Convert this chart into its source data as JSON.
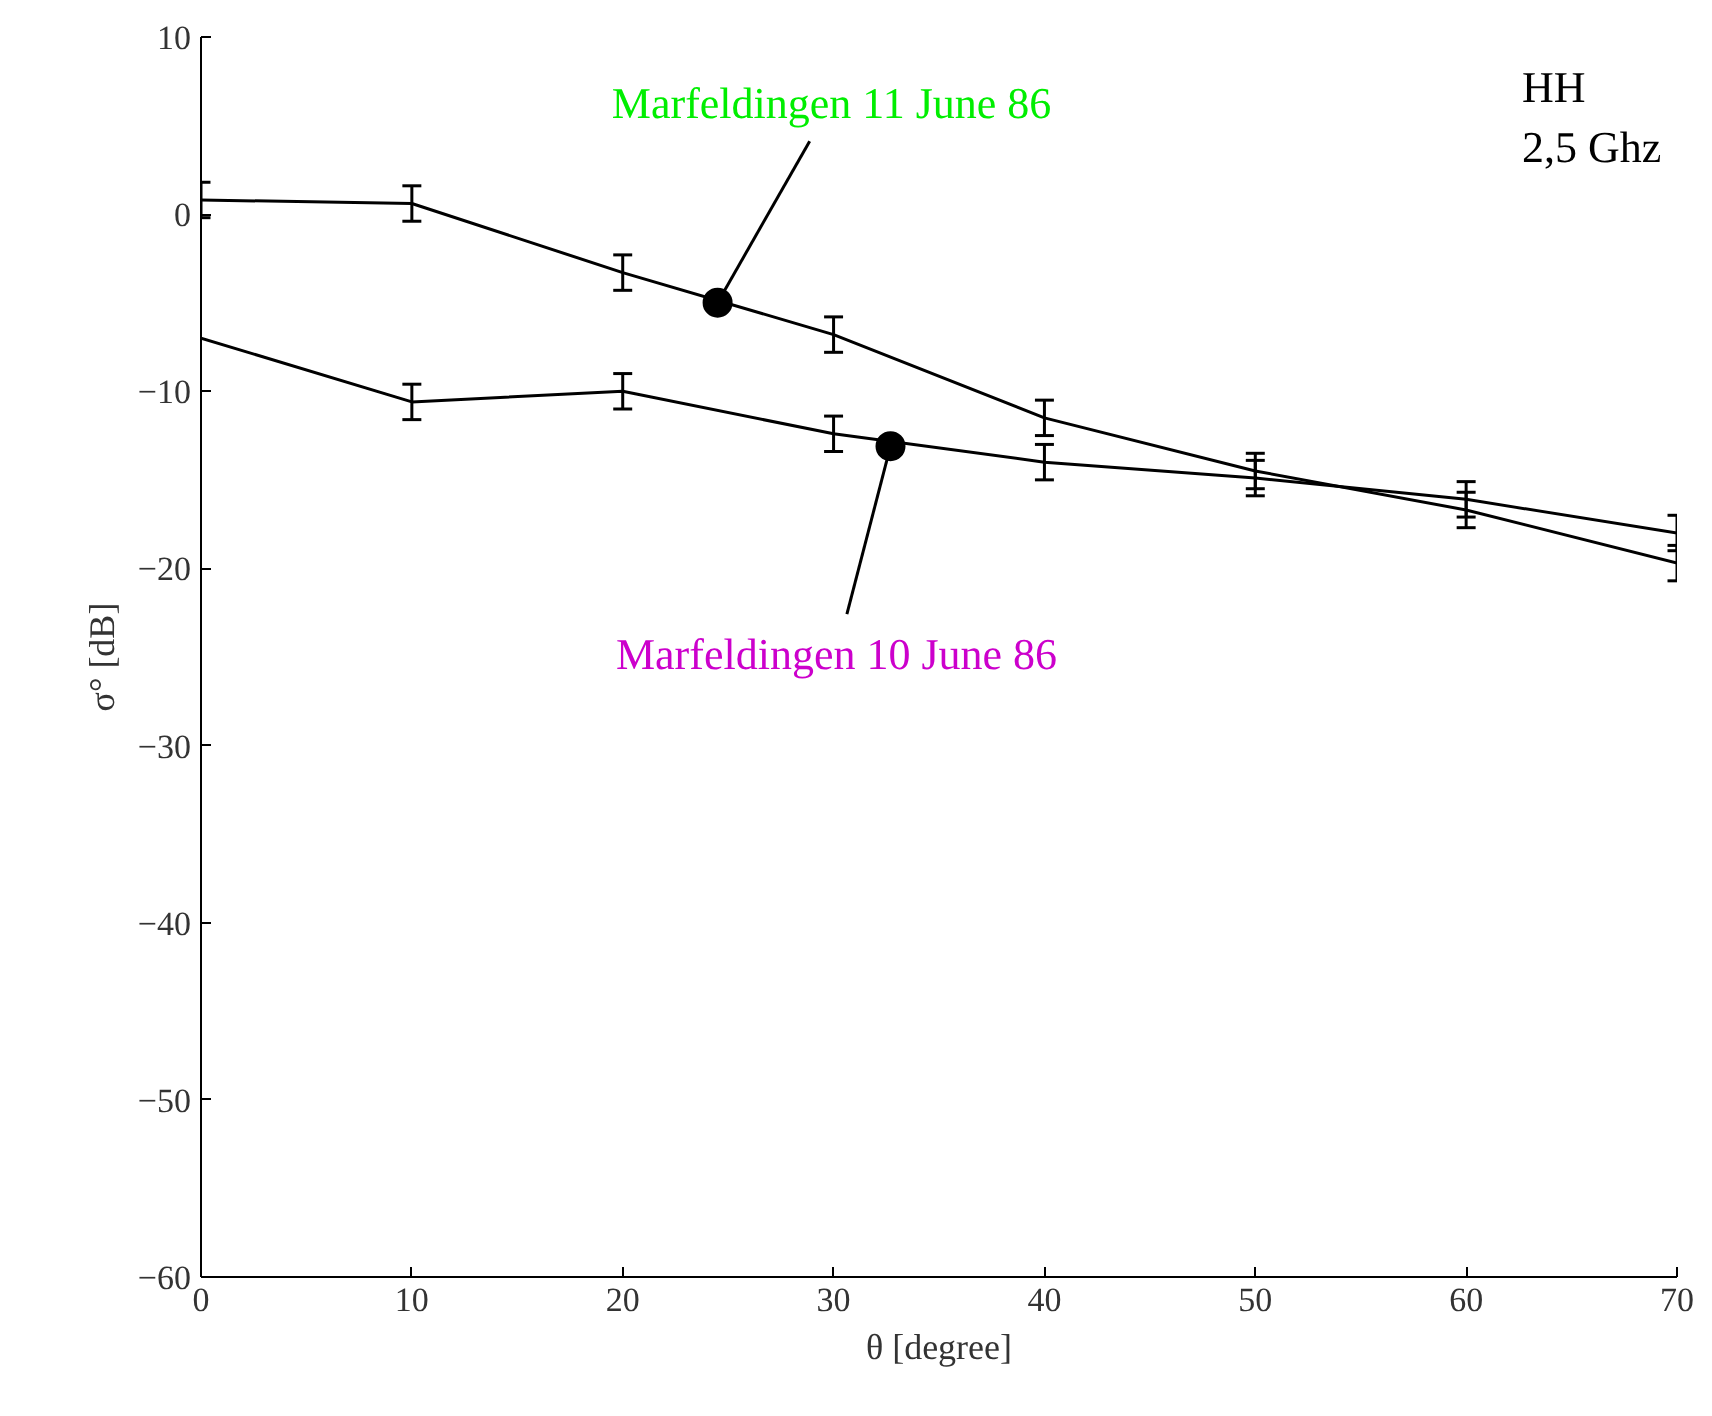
{
  "chart_data": {
    "type": "line",
    "xlabel": "θ [degree]",
    "ylabel": "σ° [dB]",
    "x": [
      0,
      10,
      20,
      30,
      40,
      50,
      60,
      70
    ],
    "series": [
      {
        "color": "#000000",
        "values": [
          0.8,
          0.6,
          -3.3,
          -6.8,
          -11.5,
          -14.5,
          -16.7,
          -19.7
        ],
        "errors": [
          1,
          1,
          1,
          1,
          1,
          1,
          1,
          1
        ]
      },
      {
        "color": "#000000",
        "values": [
          -7,
          -10.6,
          -10,
          -12.4,
          -14,
          -14.9,
          -16.1,
          -18
        ],
        "errors": [
          null,
          1,
          1,
          1,
          1,
          1,
          1,
          1
        ]
      }
    ],
    "annotations": [
      {
        "text": "Marfeldingen 11 June 86",
        "x": 24.5,
        "y": -5
      },
      {
        "text": "Marfeldingen 10 June 86",
        "x": 32.7,
        "y": -13.1
      },
      "HH\n2,5 Ghz"
    ],
    "xlim": [
      0,
      70
    ],
    "ylim": [
      -60,
      10
    ],
    "xticks": [
      0,
      10,
      20,
      30,
      40,
      50,
      60,
      70
    ],
    "yticks": [
      -60,
      -50,
      -40,
      -30,
      -20,
      -10,
      0,
      10
    ],
    "grid": false,
    "marker": "none",
    "line_style": "solid"
  }
}
